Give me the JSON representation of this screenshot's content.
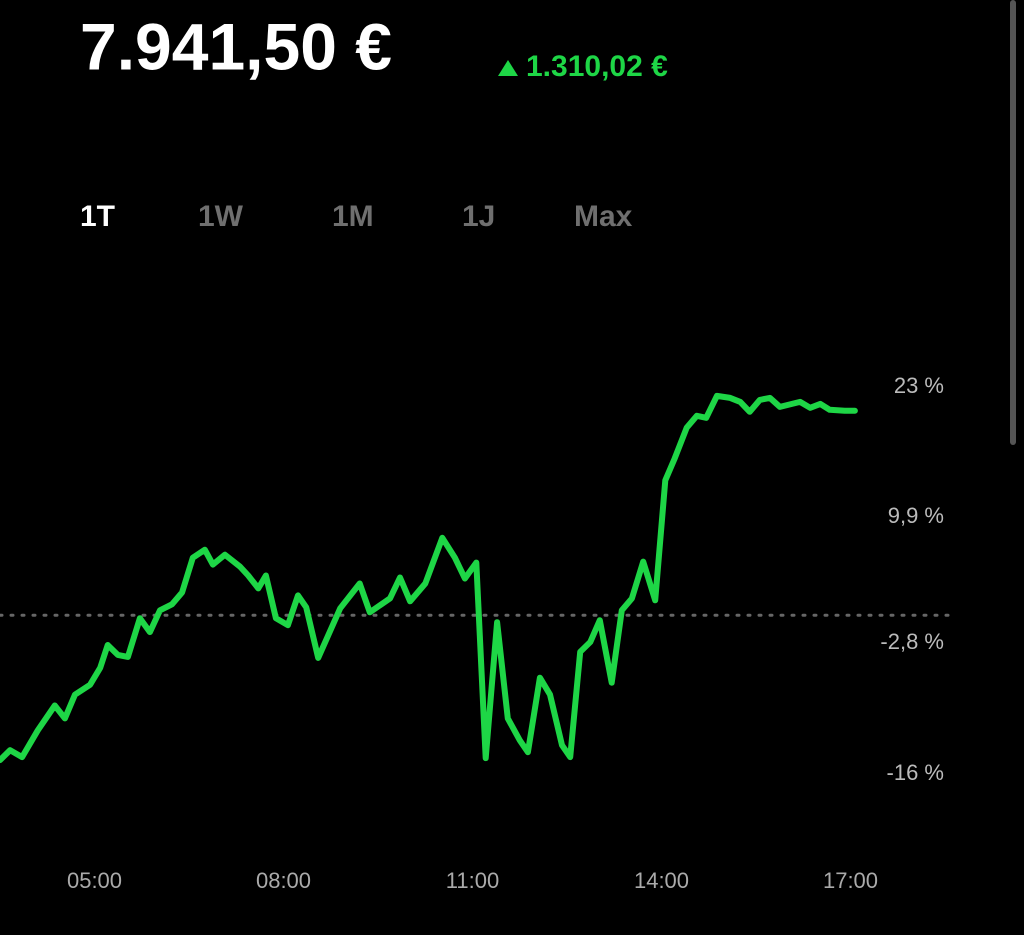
{
  "header": {
    "value": "7.941,50 €",
    "change": "1.310,02 €"
  },
  "tabs": [
    "1T",
    "1W",
    "1M",
    "1J",
    "Max"
  ],
  "active_tab": 0,
  "chart_data": {
    "type": "line",
    "color": "#1ed646",
    "x": [
      3.5,
      3.66,
      3.85,
      4.1,
      4.37,
      4.53,
      4.69,
      4.93,
      5.09,
      5.21,
      5.37,
      5.53,
      5.72,
      5.88,
      6.04,
      6.23,
      6.39,
      6.56,
      6.75,
      6.88,
      7.07,
      7.31,
      7.44,
      7.6,
      7.72,
      7.88,
      8.07,
      8.23,
      8.36,
      8.55,
      8.9,
      9.21,
      9.37,
      9.69,
      9.85,
      10.01,
      10.25,
      10.52,
      10.72,
      10.88,
      11.06,
      11.21,
      11.39,
      11.56,
      11.75,
      11.88,
      12.07,
      12.23,
      12.42,
      12.55,
      12.71,
      12.87,
      13.02,
      13.21,
      13.37,
      13.53,
      13.71,
      13.9,
      14.06,
      14.21,
      14.4,
      14.56,
      14.71,
      14.88,
      15.09,
      15.25,
      15.4,
      15.56,
      15.72,
      15.88,
      16.2,
      16.36,
      16.52,
      16.67,
      16.91,
      17.07
    ],
    "values": [
      -14.6,
      -13.6,
      -14.3,
      -11.6,
      -9.1,
      -10.4,
      -8.0,
      -7.0,
      -5.3,
      -3.0,
      -4.0,
      -4.2,
      -0.3,
      -1.7,
      0.5,
      1.1,
      2.3,
      5.8,
      6.6,
      5.1,
      6.1,
      4.9,
      4.0,
      2.7,
      4.0,
      -0.3,
      -1.0,
      2.0,
      0.8,
      -4.3,
      0.7,
      3.2,
      0.3,
      1.7,
      3.8,
      1.4,
      3.2,
      7.8,
      5.8,
      3.7,
      5.3,
      -14.4,
      -0.7,
      -10.4,
      -12.6,
      -13.8,
      -6.3,
      -8.0,
      -13.1,
      -14.3,
      -3.7,
      -2.7,
      -0.5,
      -6.8,
      0.5,
      1.7,
      5.4,
      1.5,
      13.6,
      15.8,
      18.9,
      20.1,
      19.9,
      22.1,
      21.9,
      21.5,
      20.5,
      21.7,
      21.9,
      21.0,
      21.5,
      20.9,
      21.3,
      20.7,
      20.6,
      20.6
    ],
    "xlim": [
      3.5,
      19.5
    ],
    "xticks": [
      {
        "value": 5,
        "label": "05:00"
      },
      {
        "value": 8,
        "label": "08:00"
      },
      {
        "value": 11,
        "label": "11:00"
      },
      {
        "value": 14,
        "label": "14:00"
      },
      {
        "value": 17,
        "label": "17:00"
      }
    ],
    "ylim": [
      -25,
      32
    ],
    "yticks": [
      {
        "value": 23,
        "label": "23 %"
      },
      {
        "value": 9.9,
        "label": "9,9 %"
      },
      {
        "value": -2.8,
        "label": "-2,8 %"
      },
      {
        "value": -16,
        "label": "-16 %"
      }
    ],
    "baseline": 0
  }
}
